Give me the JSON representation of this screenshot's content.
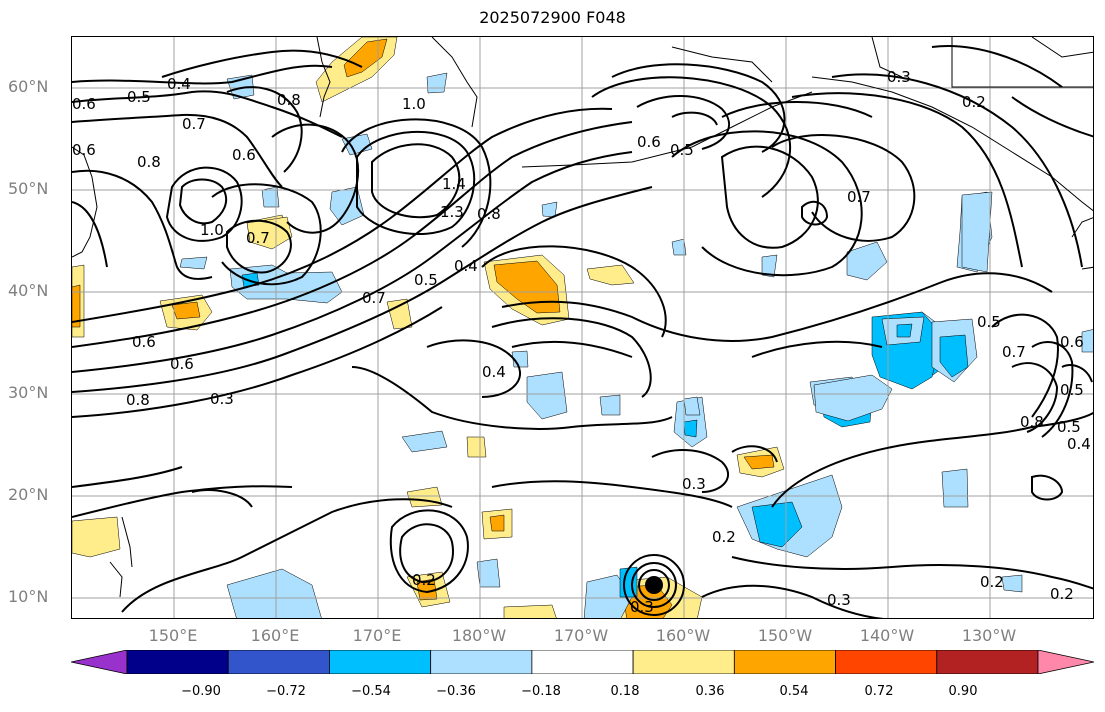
{
  "title": "2025072900 F048",
  "lat_labels": [
    "60°N",
    "50°N",
    "40°N",
    "30°N",
    "20°N",
    "10°N"
  ],
  "lon_labels": [
    "150°E",
    "160°E",
    "170°E",
    "180°W",
    "170°W",
    "160°W",
    "150°W",
    "140°W",
    "130°W"
  ],
  "colorbar": {
    "colors": [
      "#9932CC",
      "#00008B",
      "#3355CC",
      "#00BFFF",
      "#ADDFFF",
      "#FFFFFF",
      "#FFEC8B",
      "#FFA500",
      "#FF4500",
      "#B22222",
      "#FF88AA"
    ],
    "ticks": [
      "−0.90",
      "−0.72",
      "−0.54",
      "−0.36",
      "−0.18",
      "0.18",
      "0.36",
      "0.54",
      "0.72",
      "0.90"
    ]
  },
  "contour_labels": [
    "0.4",
    "0.5",
    "0.6",
    "0.7",
    "0.8",
    "1.0",
    "0.6",
    "0.8",
    "1.0",
    "1.4",
    "1.3",
    "0.8",
    "0.4",
    "0.5",
    "0.7",
    "0.6",
    "0.6",
    "0.3",
    "0.8",
    "0.7",
    "0.6",
    "0.6",
    "0.5",
    "0.3",
    "0.2",
    "0.7",
    "0.5",
    "0.7",
    "0.6",
    "0.8",
    "0.5",
    "0.4",
    "0.4",
    "0.3",
    "0.2",
    "0.2",
    "0.3",
    "0.3",
    "0.2",
    "0.2",
    "0.5"
  ]
}
